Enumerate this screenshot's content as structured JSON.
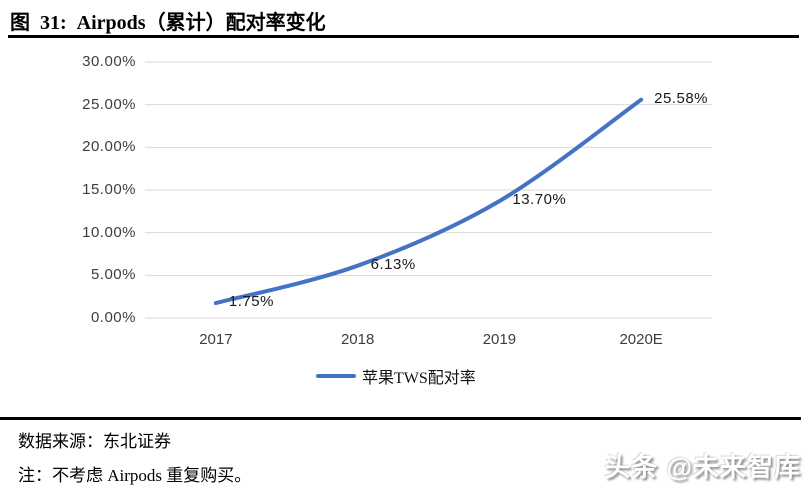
{
  "figure": {
    "title": "图  31:  Airpods（累计）配对率变化",
    "source": "数据来源：东北证券",
    "note": "注：不考虑 Airpods 重复购买。",
    "watermark": "头条 @未来智库"
  },
  "chart_data": {
    "type": "line",
    "categories": [
      "2017",
      "2018",
      "2019",
      "2020E"
    ],
    "series": [
      {
        "name": "苹果TWS配对率",
        "values": [
          1.75,
          6.13,
          13.7,
          25.58
        ],
        "color": "#4472C4"
      }
    ],
    "data_labels": [
      "1.75%",
      "6.13%",
      "13.70%",
      "25.58%"
    ],
    "yticks": [
      "30.00%",
      "25.00%",
      "20.00%",
      "15.00%",
      "10.00%",
      "5.00%",
      "0.00%"
    ],
    "ylim": [
      0,
      30
    ],
    "grid": true,
    "gridline_color": "#D9D9D9",
    "legend_position": "bottom",
    "smoothed": true
  }
}
